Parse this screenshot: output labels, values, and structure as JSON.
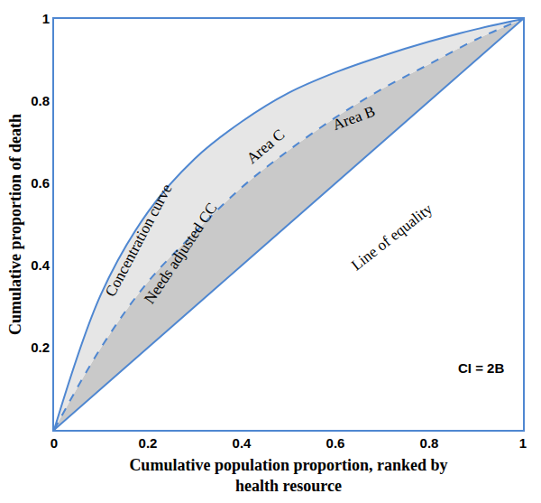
{
  "chart_data": {
    "type": "line",
    "x_label": "Cumulative population proportion, ranked by health resource",
    "y_label": "Cumulative proportion of death",
    "x": [
      0,
      0.1,
      0.2,
      0.3,
      0.4,
      0.5,
      0.6,
      0.7,
      0.8,
      0.9,
      1
    ],
    "series": [
      {
        "name": "Line of equality",
        "color": "#4f87d1",
        "line_style": "solid",
        "values": [
          0,
          0.1,
          0.2,
          0.3,
          0.4,
          0.5,
          0.6,
          0.7,
          0.8,
          0.9,
          1
        ]
      },
      {
        "name": "Needs adjusted CC",
        "color": "#4f87d1",
        "line_style": "dashed",
        "values": [
          0,
          0.2,
          0.36,
          0.48,
          0.59,
          0.68,
          0.76,
          0.83,
          0.89,
          0.95,
          1
        ]
      },
      {
        "name": "Concentration curve",
        "color": "#4f87d1",
        "line_style": "solid",
        "values": [
          0,
          0.33,
          0.53,
          0.66,
          0.75,
          0.82,
          0.87,
          0.91,
          0.945,
          0.975,
          1
        ]
      }
    ],
    "annotations": [
      "Area C",
      "Area B",
      "CI = 2B"
    ],
    "xlim": [
      0,
      1
    ],
    "ylim": [
      0,
      1
    ],
    "xticks": [
      0,
      0.2,
      0.4,
      0.6,
      0.8,
      1
    ],
    "yticks": [
      0.2,
      0.4,
      0.6,
      0.8,
      1
    ],
    "grid": false
  }
}
